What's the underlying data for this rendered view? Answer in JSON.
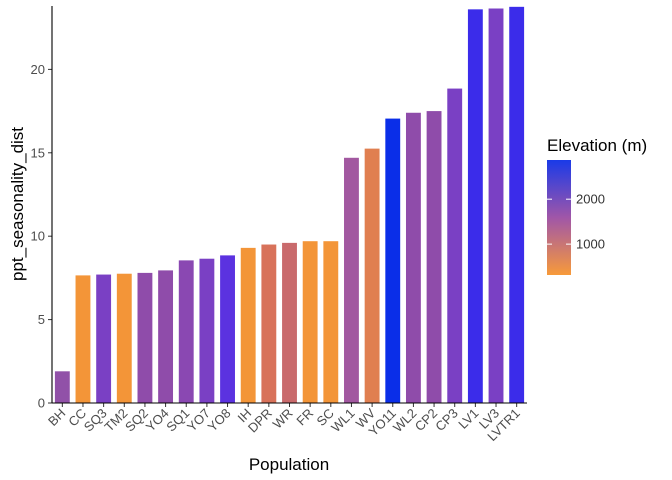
{
  "chart_data": {
    "type": "bar",
    "xlabel": "Population",
    "ylabel": "ppt_seasonality_dist",
    "ylim": [
      0,
      23.8
    ],
    "yticks": [
      0,
      5,
      10,
      15,
      20
    ],
    "grid": false,
    "categories": [
      "BH",
      "CC",
      "SQ3",
      "TM2",
      "SQ2",
      "YO4",
      "SQ1",
      "YO7",
      "YO8",
      "IH",
      "DPR",
      "WR",
      "FR",
      "SC",
      "WL1",
      "WV",
      "YO11",
      "WL2",
      "CP2",
      "CP3",
      "LV1",
      "LV3",
      "LVTR1"
    ],
    "values": [
      1.9,
      7.65,
      7.7,
      7.75,
      7.8,
      7.95,
      8.55,
      8.65,
      8.85,
      9.3,
      9.5,
      9.6,
      9.7,
      9.7,
      14.7,
      15.25,
      17.05,
      17.4,
      17.5,
      18.85,
      23.6,
      23.65,
      23.75
    ],
    "elevation": [
      2000,
      313,
      2373,
      379,
      2470,
      2470,
      2400,
      2470,
      2700,
      454,
      1019,
      1158,
      313,
      313,
      1614,
      748,
      2872,
      2020,
      2244,
      2266,
      2593,
      2353,
      2593
    ],
    "fill_colors": [
      "#9151a8",
      "#f39538",
      "#7a40c4",
      "#f39538",
      "#8f4caa",
      "#8f4caa",
      "#8a48b2",
      "#7a40c4",
      "#5b32e0",
      "#f39538",
      "#d8725a",
      "#c96a6c",
      "#f39538",
      "#f39538",
      "#a258a0",
      "#e07f50",
      "#0a2ee8",
      "#8f4caa",
      "#8f4caa",
      "#7a40c4",
      "#3b2cea",
      "#7a40c4",
      "#3b2cea"
    ],
    "legend": {
      "title": "Elevation (m)",
      "placement": "right",
      "ticks": [
        1000,
        2000
      ],
      "range": [
        313,
        2872
      ],
      "color_low": "#f79a3a",
      "color_mid": "#a056a8",
      "color_high": "#1a3ae8"
    }
  }
}
